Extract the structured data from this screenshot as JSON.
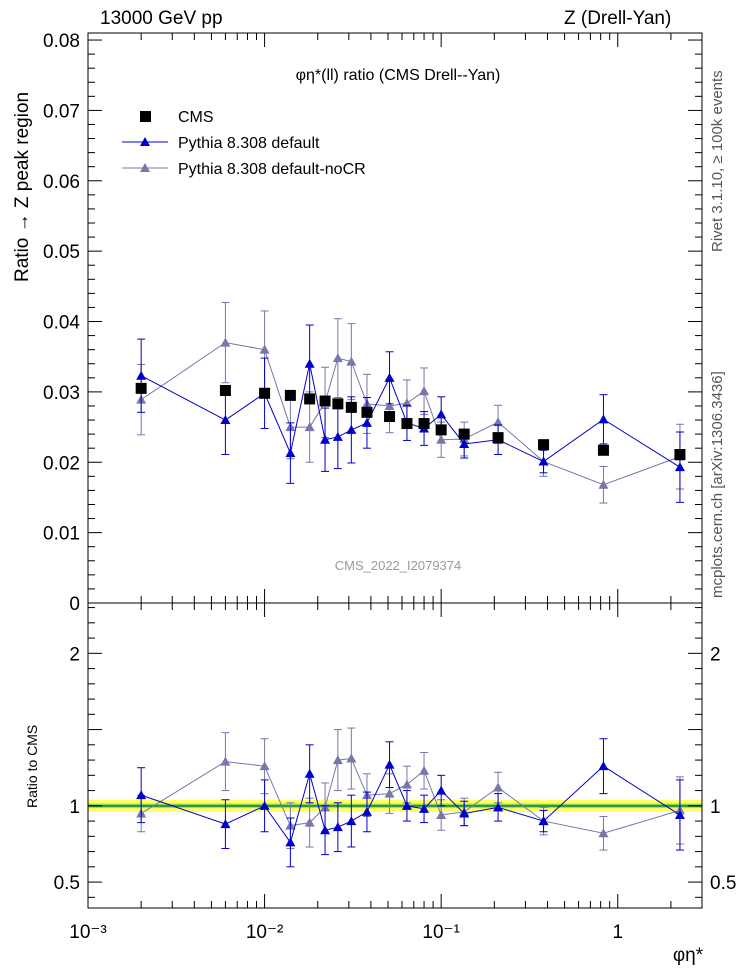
{
  "header": {
    "energy": "13000 GeV pp",
    "process": "Z (Drell-Yan)"
  },
  "side_labels": {
    "rivet": "Rivet 3.1.10, ≥ 100k events",
    "mcplots": "mcplots.cern.ch [arXiv:1306.3436]"
  },
  "watermark": "CMS_2022_I2079374",
  "colors": {
    "cms": "#000000",
    "default": "#0000cc",
    "noCR": "#7777aa",
    "band_outer": "#ffff66",
    "band_inner": "#99e64d",
    "ref_line": "#2e8b57"
  },
  "chart_data": [
    {
      "type": "scatter",
      "title": "φη*(ll) ratio (CMS Drell--Yan)",
      "xlabel": "φη*",
      "ylabel": "Ratio → Z peak region",
      "xscale": "log",
      "xlim": [
        0.001,
        3
      ],
      "ylim": [
        0,
        0.081
      ],
      "y_ticks": [
        "0",
        "0.01",
        "0.02",
        "0.03",
        "0.04",
        "0.05",
        "0.06",
        "0.07",
        "0.08"
      ],
      "x_ticks": [
        "10⁻³",
        "10⁻²",
        "10⁻¹",
        "1"
      ],
      "legend_position": "top-left",
      "x": [
        0.002,
        0.006,
        0.01,
        0.014,
        0.018,
        0.022,
        0.026,
        0.031,
        0.038,
        0.051,
        0.064,
        0.08,
        0.1,
        0.135,
        0.21,
        0.38,
        0.83,
        2.25
      ],
      "series": [
        {
          "name": "CMS",
          "marker": "square",
          "values": [
            0.0305,
            0.0302,
            0.0298,
            0.0295,
            0.029,
            0.0287,
            0.0283,
            0.0278,
            0.0271,
            0.0265,
            0.0255,
            0.0255,
            0.0246,
            0.024,
            0.0235,
            0.0225,
            0.0217,
            0.0211
          ]
        },
        {
          "name": "Pythia 8.308 default",
          "marker": "triangle",
          "values": [
            0.0323,
            0.026,
            0.0298,
            0.0213,
            0.034,
            0.0232,
            0.0236,
            0.0246,
            0.0256,
            0.032,
            0.0256,
            0.0248,
            0.0268,
            0.0226,
            0.0232,
            0.0201,
            0.0261,
            0.0193
          ],
          "errors": [
            0.0052,
            0.0049,
            0.005,
            0.0043,
            0.0055,
            0.0045,
            0.0045,
            0.0047,
            0.0036,
            0.0037,
            0.0025,
            0.0024,
            0.0025,
            0.002,
            0.0021,
            0.0016,
            0.0035,
            0.005
          ]
        },
        {
          "name": "Pythia 8.308 default-noCR",
          "marker": "triangle",
          "values": [
            0.0289,
            0.037,
            0.036,
            0.025,
            0.025,
            0.0285,
            0.0348,
            0.0343,
            0.0283,
            0.028,
            0.0284,
            0.0301,
            0.0232,
            0.0233,
            0.0257,
            0.0201,
            0.0168,
            0.0208
          ],
          "errors": [
            0.005,
            0.0057,
            0.0055,
            0.0045,
            0.005,
            0.005,
            0.0056,
            0.0054,
            0.0042,
            0.0038,
            0.0033,
            0.0033,
            0.0025,
            0.0024,
            0.0024,
            0.0021,
            0.0026,
            0.0046
          ]
        }
      ]
    },
    {
      "type": "scatter",
      "ylabel": "Ratio to CMS",
      "xlabel": "φη*",
      "xscale": "log",
      "xlim": [
        0.001,
        3
      ],
      "ylim": [
        0.33,
        2.33
      ],
      "y_ticks": [
        "0.5",
        "1",
        "2"
      ],
      "x_ticks": [
        "10⁻³",
        "10⁻²",
        "10⁻¹",
        "1"
      ],
      "x": [
        0.002,
        0.006,
        0.01,
        0.014,
        0.018,
        0.022,
        0.026,
        0.031,
        0.038,
        0.051,
        0.064,
        0.08,
        0.1,
        0.135,
        0.21,
        0.38,
        0.83,
        2.25
      ],
      "series": [
        {
          "name": "Pythia 8.308 default",
          "values": [
            1.07,
            0.88,
            1.0,
            0.76,
            1.21,
            0.84,
            0.86,
            0.9,
            0.96,
            1.27,
            1.0,
            0.98,
            1.1,
            0.95,
            0.99,
            0.9,
            1.26,
            0.94
          ],
          "errors": [
            0.18,
            0.16,
            0.17,
            0.16,
            0.19,
            0.16,
            0.16,
            0.17,
            0.13,
            0.15,
            0.1,
            0.09,
            0.1,
            0.08,
            0.09,
            0.07,
            0.18,
            0.23
          ]
        },
        {
          "name": "Pythia 8.308 default-noCR",
          "values": [
            0.95,
            1.29,
            1.26,
            0.87,
            0.89,
            0.99,
            1.3,
            1.31,
            1.07,
            1.08,
            1.14,
            1.23,
            0.94,
            0.96,
            1.12,
            0.9,
            0.82,
            0.97
          ],
          "errors": [
            0.12,
            0.19,
            0.18,
            0.15,
            0.16,
            0.16,
            0.2,
            0.2,
            0.14,
            0.13,
            0.12,
            0.12,
            0.1,
            0.09,
            0.1,
            0.09,
            0.11,
            0.22
          ]
        }
      ],
      "reference_line": 1
    }
  ]
}
